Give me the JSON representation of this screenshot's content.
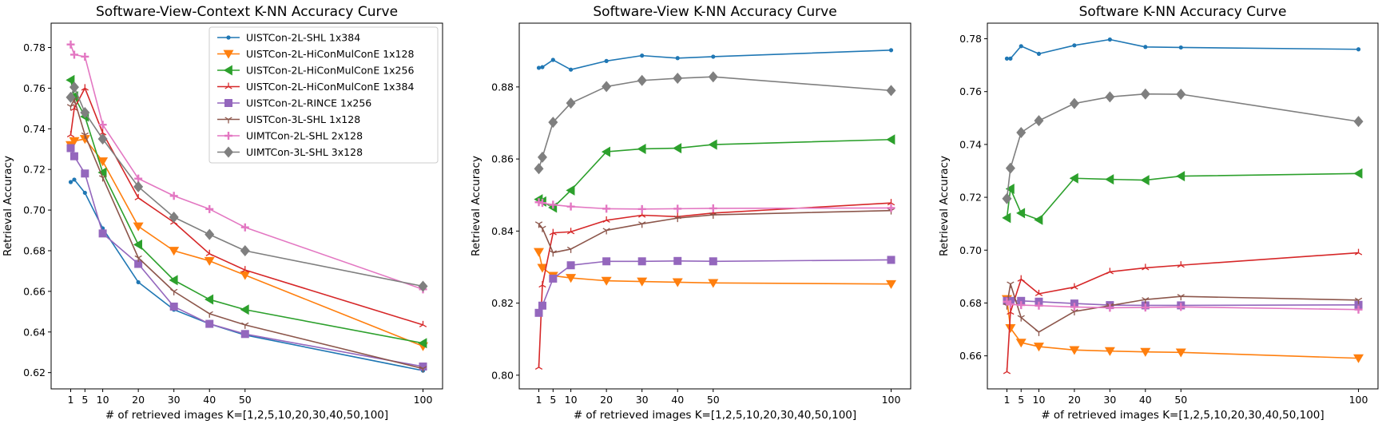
{
  "chart_data": [
    {
      "type": "line",
      "title": "Software-View-Context K-NN Accuracy Curve",
      "xlabel": "# of retrieved images K=[1,2,5,10,20,30,40,50,100]",
      "ylabel": "Retrieval Accuracy",
      "xlim": [
        -4.5,
        105.5
      ],
      "ylim": [
        0.612,
        0.792
      ],
      "xticks": [
        1,
        5,
        10,
        20,
        30,
        40,
        50,
        100
      ],
      "yticks": [
        0.62,
        0.64,
        0.66,
        0.68,
        0.7,
        0.72,
        0.74,
        0.76,
        0.78
      ],
      "ytick_labels": [
        "0.62",
        "0.64",
        "0.66",
        "0.68",
        "0.70",
        "0.72",
        "0.74",
        "0.76",
        "0.78"
      ],
      "grid": false,
      "legend": "top-right",
      "x": [
        1,
        2,
        5,
        10,
        20,
        30,
        40,
        50,
        100
      ],
      "series": [
        {
          "name": "UISTCon-2L-SHL 1x384",
          "color": "#1f77b4",
          "marker": "dot",
          "values": [
            0.7138,
            0.715,
            0.7085,
            0.691,
            0.6645,
            0.651,
            0.644,
            0.6385,
            0.621
          ]
        },
        {
          "name": "UISTCon-2L-HiConMulConE 1x128",
          "color": "#ff7f0e",
          "marker": "tri-down",
          "values": [
            0.732,
            0.734,
            0.735,
            0.724,
            0.692,
            0.68,
            0.675,
            0.668,
            0.633
          ]
        },
        {
          "name": "UISTCon-2L-HiConMulConE 1x256",
          "color": "#2ca02c",
          "marker": "tri-left",
          "values": [
            0.764,
            0.756,
            0.746,
            0.7185,
            0.683,
            0.6655,
            0.656,
            0.651,
            0.6345
          ]
        },
        {
          "name": "UISTCon-2L-HiConMulConE 1x384",
          "color": "#d62728",
          "marker": "tri-thin",
          "values": [
            0.737,
            0.75,
            0.76,
            0.738,
            0.706,
            0.694,
            0.6785,
            0.6705,
            0.6435
          ]
        },
        {
          "name": "UISTCon-2L-RINCE 1x256",
          "color": "#9467bd",
          "marker": "square",
          "values": [
            0.7305,
            0.7265,
            0.718,
            0.6885,
            0.6735,
            0.6525,
            0.644,
            0.639,
            0.623
          ]
        },
        {
          "name": "UISTCon-3L-SHL 1x128",
          "color": "#8c564b",
          "marker": "tri-thin-down",
          "values": [
            0.751,
            0.7545,
            0.737,
            0.716,
            0.6765,
            0.66,
            0.649,
            0.6435,
            0.622
          ]
        },
        {
          "name": "UIMTCon-2L-SHL 2x128",
          "color": "#e377c2",
          "marker": "plus",
          "values": [
            0.7815,
            0.7765,
            0.7755,
            0.742,
            0.7155,
            0.707,
            0.7005,
            0.6915,
            0.661
          ]
        },
        {
          "name": "UIMTCon-3L-SHL 3x128",
          "color": "#7f7f7f",
          "marker": "diamond",
          "values": [
            0.7555,
            0.7605,
            0.748,
            0.735,
            0.7115,
            0.6965,
            0.688,
            0.68,
            0.6625
          ]
        }
      ]
    },
    {
      "type": "line",
      "title": "Software-View K-NN Accuracy Curve",
      "xlabel": "# of retrieved images K=[1,2,5,10,20,30,40,50,100]",
      "ylabel": "Retrieval Accuracy",
      "xlim": [
        -4.5,
        105.5
      ],
      "ylim": [
        0.7962,
        0.8977
      ],
      "xticks": [
        1,
        5,
        10,
        20,
        30,
        40,
        50,
        100
      ],
      "yticks": [
        0.8,
        0.82,
        0.84,
        0.86,
        0.88
      ],
      "ytick_labels": [
        "0.80",
        "0.82",
        "0.84",
        "0.86",
        "0.88"
      ],
      "grid": false,
      "x": [
        1,
        2,
        5,
        10,
        20,
        30,
        40,
        50,
        100
      ],
      "series": [
        {
          "name": "UISTCon-2L-SHL 1x384",
          "color": "#1f77b4",
          "marker": "dot",
          "values": [
            0.8853,
            0.8855,
            0.8875,
            0.8848,
            0.8872,
            0.8887,
            0.888,
            0.8884,
            0.8902
          ]
        },
        {
          "name": "UISTCon-2L-HiConMulConE 1x128",
          "color": "#ff7f0e",
          "marker": "tri-down",
          "values": [
            0.8342,
            0.8298,
            0.8276,
            0.827,
            0.8262,
            0.826,
            0.8258,
            0.8256,
            0.8253
          ]
        },
        {
          "name": "UISTCon-2L-HiConMulConE 1x256",
          "color": "#2ca02c",
          "marker": "tri-left",
          "values": [
            0.8488,
            0.8482,
            0.8465,
            0.8513,
            0.862,
            0.8628,
            0.863,
            0.864,
            0.8654
          ]
        },
        {
          "name": "UISTCon-2L-HiConMulConE 1x384",
          "color": "#d62728",
          "marker": "tri-thin",
          "values": [
            0.8022,
            0.825,
            0.8395,
            0.8398,
            0.843,
            0.8444,
            0.844,
            0.845,
            0.8478
          ]
        },
        {
          "name": "UISTCon-2L-RINCE 1x256",
          "color": "#9467bd",
          "marker": "square",
          "values": [
            0.8173,
            0.8193,
            0.8268,
            0.8305,
            0.8316,
            0.8316,
            0.8317,
            0.8316,
            0.832
          ]
        },
        {
          "name": "UISTCon-3L-SHL 1x128",
          "color": "#8c564b",
          "marker": "tri-thin-down",
          "values": [
            0.842,
            0.8408,
            0.834,
            0.835,
            0.8402,
            0.842,
            0.8436,
            0.8445,
            0.8457
          ]
        },
        {
          "name": "UIMTCon-2L-SHL 2x128",
          "color": "#e377c2",
          "marker": "plus",
          "values": [
            0.848,
            0.8478,
            0.8473,
            0.8468,
            0.8462,
            0.8461,
            0.8462,
            0.8463,
            0.8464
          ]
        },
        {
          "name": "UIMTCon-3L-SHL 3x128",
          "color": "#7f7f7f",
          "marker": "diamond",
          "values": [
            0.8573,
            0.8605,
            0.8702,
            0.8755,
            0.8801,
            0.8818,
            0.8824,
            0.8828,
            0.879
          ]
        }
      ]
    },
    {
      "type": "line",
      "title": "Software K-NN Accuracy Curve",
      "xlabel": "# of retrieved images K=[1,2,5,10,20,30,40,50,100]",
      "ylabel": "Retrieval Accuracy",
      "xlim": [
        -4.5,
        105.5
      ],
      "ylim": [
        0.6475,
        0.7859
      ],
      "xticks": [
        1,
        5,
        10,
        20,
        30,
        40,
        50,
        100
      ],
      "yticks": [
        0.66,
        0.68,
        0.7,
        0.72,
        0.74,
        0.76,
        0.78
      ],
      "ytick_labels": [
        "0.66",
        "0.68",
        "0.70",
        "0.72",
        "0.74",
        "0.76",
        "0.78"
      ],
      "grid": false,
      "x": [
        1,
        2,
        5,
        10,
        20,
        30,
        40,
        50,
        100
      ],
      "series": [
        {
          "name": "UISTCon-2L-SHL 1x384",
          "color": "#1f77b4",
          "marker": "dot",
          "values": [
            0.7725,
            0.7725,
            0.7772,
            0.7743,
            0.7775,
            0.7797,
            0.7769,
            0.7767,
            0.776
          ]
        },
        {
          "name": "UISTCon-2L-HiConMulConE 1x128",
          "color": "#ff7f0e",
          "marker": "tri-down",
          "values": [
            0.6815,
            0.6705,
            0.665,
            0.6635,
            0.6622,
            0.6618,
            0.6615,
            0.6613,
            0.6591
          ]
        },
        {
          "name": "UISTCon-2L-HiConMulConE 1x256",
          "color": "#2ca02c",
          "marker": "tri-left",
          "values": [
            0.7122,
            0.7232,
            0.714,
            0.7115,
            0.7272,
            0.7268,
            0.7265,
            0.728,
            0.729
          ]
        },
        {
          "name": "UISTCon-2L-HiConMulConE 1x384",
          "color": "#d62728",
          "marker": "tri-thin",
          "values": [
            0.654,
            0.6765,
            0.689,
            0.6835,
            0.686,
            0.6918,
            0.6933,
            0.6943,
            0.699
          ]
        },
        {
          "name": "UISTCon-2L-RINCE 1x256",
          "color": "#9467bd",
          "marker": "square",
          "values": [
            0.6808,
            0.6808,
            0.6808,
            0.6805,
            0.6798,
            0.6792,
            0.6791,
            0.6791,
            0.6793
          ]
        },
        {
          "name": "UISTCon-3L-SHL 1x128",
          "color": "#8c564b",
          "marker": "tri-thin-down",
          "values": [
            0.679,
            0.6872,
            0.6745,
            0.669,
            0.6768,
            0.679,
            0.6813,
            0.6825,
            0.6811
          ]
        },
        {
          "name": "UIMTCon-2L-SHL 2x128",
          "color": "#e377c2",
          "marker": "plus",
          "values": [
            0.6805,
            0.6795,
            0.6792,
            0.679,
            0.6785,
            0.6782,
            0.6783,
            0.6785,
            0.6775
          ]
        },
        {
          "name": "UIMTCon-3L-SHL 3x128",
          "color": "#7f7f7f",
          "marker": "diamond",
          "values": [
            0.7195,
            0.731,
            0.7445,
            0.749,
            0.7555,
            0.758,
            0.7591,
            0.759,
            0.7487
          ]
        }
      ]
    }
  ]
}
